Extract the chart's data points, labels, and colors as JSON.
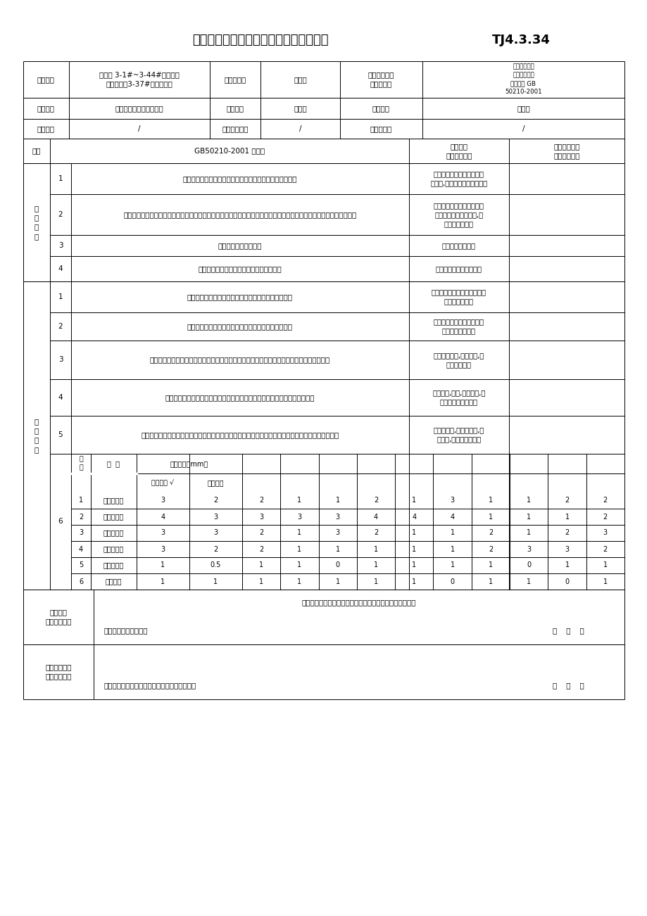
{
  "title": "饰面砖粘贴分项工程检验批质量验收记录",
  "title_code": "TJ4.3.34",
  "main_items": [
    {
      "no": "1",
      "standard": "饰面砖的品种、规格、图案、颜色和性能应符合设计要求。",
      "inspection": "饰面砖颜色、图案和性能符\n合设计,有合格证、检测报告。"
    },
    {
      "no": "2",
      "standard": "饰面砖粘贴工程的找平、防水、粘结和勾缝材料及施工方法应符合设计要求及国家现行产品标准和工程技术标准的规定。",
      "inspection": "施工工序过程及施工方法符\n合设计及有关标准要求,所\n用材料均合格。"
    },
    {
      "no": "3",
      "standard": "饰面砖粘贴必须牢固。",
      "inspection": "饰面砖粘贴牢固。"
    },
    {
      "no": "4",
      "standard": "满粘法施工的饰面砖工程应无空鼓、裂缝。",
      "inspection": "经检查无空鼓、无裂缝。"
    }
  ],
  "general_items": [
    {
      "no": "1",
      "standard": "饰面砖表面应平整、洁净、色泽一致，无裂痕和缺损。",
      "inspection": "表面平整、洁净、色泽一致，\n无裂痕和缺损。"
    },
    {
      "no": "2",
      "standard": "阴阳角处搭接方式、非整砖使用部位应符合设计要求。",
      "inspection": "阴阳角处搭接方式、半砖使\n用部位符合要求。"
    },
    {
      "no": "3",
      "standard": "墙面突出物周围的饰面砖应整砖套割吻合，边缘应整齐。墙裙、贴脸突出墙面的厚度应一致。",
      "inspection": "整砖套割吻合,边缘整齐,突\n出厚度一致。"
    },
    {
      "no": "4",
      "standard": "饰面砖接缝应平直、光滑，填嵌应连续、密实；宽度和深度应符合设计要求。",
      "inspection": "接缝平直,光滑,连续密实,宽\n度和深度符合要求。"
    },
    {
      "no": "5",
      "standard": "有排水要求的部位应做滴水线（槽）。滴水线（槽）应顺直，流水坡向应正确。坡度应符合设计要求。",
      "inspection": "做有滴水线,滴水线顺直,坡\n向正确,坡度符合要求。"
    }
  ],
  "tolerance_items": [
    {
      "no": "1",
      "name": "立面垂直度",
      "outer": "3",
      "inner": "2",
      "data": [
        2,
        1,
        1,
        2,
        1,
        3,
        1,
        1,
        2,
        2
      ]
    },
    {
      "no": "2",
      "name": "表面平整度",
      "outer": "4",
      "inner": "3",
      "data": [
        3,
        3,
        3,
        4,
        4,
        4,
        1,
        1,
        1,
        2
      ]
    },
    {
      "no": "3",
      "name": "阴阳角方正",
      "outer": "3",
      "inner": "3",
      "data": [
        2,
        1,
        3,
        2,
        1,
        1,
        2,
        1,
        2,
        3
      ]
    },
    {
      "no": "4",
      "name": "接缝直线度",
      "outer": "3",
      "inner": "2",
      "data": [
        2,
        1,
        1,
        1,
        1,
        1,
        2,
        3,
        3,
        2
      ]
    },
    {
      "no": "5",
      "name": "接缝高低差",
      "outer": "1",
      "inner": "0.5",
      "data": [
        1,
        1,
        0,
        1,
        1,
        1,
        1,
        0,
        1,
        1
      ]
    },
    {
      "no": "6",
      "name": "接缝宽度",
      "outer": "1",
      "inner": "1",
      "data": [
        1,
        1,
        1,
        1,
        1,
        0,
        1,
        1,
        0,
        1
      ]
    }
  ]
}
